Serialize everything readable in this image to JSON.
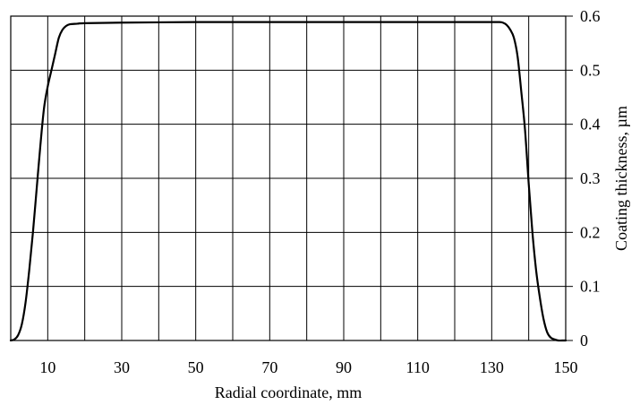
{
  "chart_data": {
    "type": "line",
    "xlabel": "Radial coordinate, mm",
    "ylabel": "Coating thickness, µm",
    "xlim": [
      0,
      150
    ],
    "ylim": [
      0,
      0.6
    ],
    "x_tick_labels": [
      "10",
      "30",
      "50",
      "70",
      "90",
      "110",
      "130",
      "150"
    ],
    "x_tick_values": [
      10,
      30,
      50,
      70,
      90,
      110,
      130,
      150
    ],
    "x_grid_values": [
      0,
      10,
      20,
      30,
      40,
      50,
      60,
      70,
      80,
      90,
      100,
      110,
      120,
      130,
      140,
      150
    ],
    "y_tick_labels": [
      "0",
      "0.1",
      "0.2",
      "0.3",
      "0.4",
      "0.5",
      "0.6"
    ],
    "y_tick_values": [
      0,
      0.1,
      0.2,
      0.3,
      0.4,
      0.5,
      0.6
    ],
    "y_axis_side": "right",
    "grid": true,
    "legend": "none",
    "series": [
      {
        "color": "#000000",
        "x": [
          0,
          1,
          2,
          3,
          4,
          5,
          6,
          7,
          8,
          9,
          10,
          11,
          12,
          13,
          14,
          15,
          16,
          18,
          20,
          30,
          50,
          70,
          90,
          110,
          125,
          130,
          132,
          133,
          134,
          135,
          136,
          137,
          138,
          139,
          140,
          141,
          142,
          143,
          144,
          145,
          146,
          147,
          148,
          149,
          150
        ],
        "y": [
          0.0,
          0.002,
          0.01,
          0.03,
          0.07,
          0.13,
          0.2,
          0.28,
          0.36,
          0.43,
          0.47,
          0.5,
          0.53,
          0.56,
          0.575,
          0.582,
          0.585,
          0.586,
          0.587,
          0.588,
          0.589,
          0.589,
          0.589,
          0.589,
          0.589,
          0.589,
          0.589,
          0.588,
          0.584,
          0.575,
          0.56,
          0.525,
          0.46,
          0.39,
          0.29,
          0.2,
          0.13,
          0.08,
          0.04,
          0.015,
          0.005,
          0.002,
          0.0,
          0.0,
          0.0
        ]
      }
    ]
  }
}
